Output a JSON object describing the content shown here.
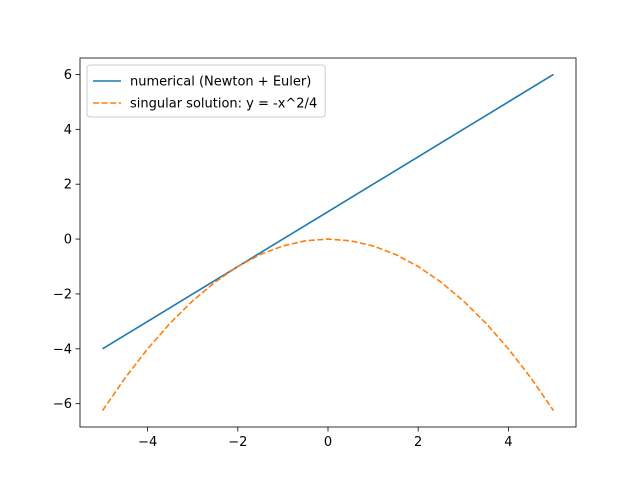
{
  "chart_data": {
    "type": "line",
    "title": "",
    "xlabel": "",
    "ylabel": "",
    "xlim": [
      -5.5,
      5.5
    ],
    "ylim": [
      -6.85,
      6.6
    ],
    "xticks": [
      -4,
      -2,
      0,
      2,
      4
    ],
    "yticks": [
      -6,
      -4,
      -2,
      0,
      2,
      4,
      6
    ],
    "xtick_labels": [
      "−4",
      "−2",
      "0",
      "2",
      "4"
    ],
    "ytick_labels": [
      "−6",
      "−4",
      "−2",
      "0",
      "2",
      "4",
      "6"
    ],
    "grid": false,
    "legend": {
      "placement": "top-left"
    },
    "series": [
      {
        "name": "numerical (Newton + Euler)",
        "style": "solid",
        "color": "#1f77b4",
        "x": [
          -5,
          -4,
          -3,
          -2,
          -1,
          0,
          1,
          2,
          3,
          4,
          5
        ],
        "y": [
          -4,
          -3,
          -2,
          -1,
          0,
          1,
          2,
          3,
          4,
          5,
          6
        ]
      },
      {
        "name": "singular solution: y = -x^2/4",
        "style": "dashed",
        "color": "#ff7f0e",
        "x": [
          -5,
          -4.5,
          -4,
          -3.5,
          -3,
          -2.5,
          -2,
          -1.5,
          -1,
          -0.5,
          0,
          0.5,
          1,
          1.5,
          2,
          2.5,
          3,
          3.5,
          4,
          4.5,
          5
        ],
        "y": [
          -6.25,
          -5.0625,
          -4,
          -3.0625,
          -2.25,
          -1.5625,
          -1,
          -0.5625,
          -0.25,
          -0.0625,
          0,
          -0.0625,
          -0.25,
          -0.5625,
          -1,
          -1.5625,
          -2.25,
          -3.0625,
          -4,
          -5.0625,
          -6.25
        ]
      }
    ]
  }
}
